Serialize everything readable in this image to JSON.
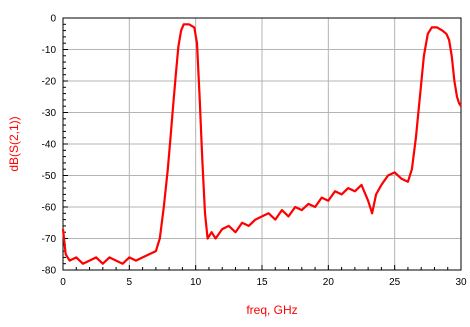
{
  "chart_data": {
    "type": "line",
    "xlabel": "freq, GHz",
    "ylabel": "dB(S(2,1))",
    "xlim": [
      0,
      30
    ],
    "ylim": [
      -80,
      0
    ],
    "x_ticks": [
      "0",
      "5",
      "10",
      "15",
      "20",
      "25",
      "30"
    ],
    "y_ticks": [
      "0",
      "-10",
      "-20",
      "-30",
      "-40",
      "-50",
      "-60",
      "-70",
      "-80"
    ],
    "grid": true,
    "colors": {
      "series": "#ff0000",
      "label": "#ff0000",
      "grid": "#b4b4b4",
      "axes": "#000000"
    },
    "series": [
      {
        "x": [
          0,
          0.2,
          0.5,
          1,
          1.5,
          2,
          2.5,
          3,
          3.5,
          4,
          4.5,
          5,
          5.5,
          6,
          6.5,
          7,
          7.3,
          7.6,
          7.9,
          8.1,
          8.3,
          8.5,
          8.7,
          8.9,
          9.1,
          9.5,
          9.9,
          10.1,
          10.3,
          10.5,
          10.7,
          10.9,
          11.2,
          11.5,
          12,
          12.5,
          13,
          13.5,
          14,
          14.5,
          15,
          15.5,
          16,
          16.5,
          17,
          17.5,
          18,
          18.5,
          19,
          19.5,
          20,
          20.5,
          21,
          21.5,
          22,
          22.5,
          23,
          23.3,
          23.6,
          24,
          24.5,
          25,
          25.5,
          26,
          26.3,
          26.6,
          26.9,
          27.2,
          27.5,
          27.8,
          28.2,
          28.6,
          28.9,
          29.1,
          29.3,
          29.5,
          29.7,
          29.85,
          30
        ],
        "y": [
          -67,
          -75,
          -77,
          -76,
          -78,
          -77,
          -76,
          -78,
          -76,
          -77,
          -78,
          -76,
          -77,
          -76,
          -75,
          -74,
          -70,
          -60,
          -48,
          -38,
          -28,
          -18,
          -9,
          -4,
          -2,
          -2,
          -3,
          -8,
          -25,
          -45,
          -62,
          -70,
          -68,
          -70,
          -67,
          -66,
          -68,
          -65,
          -66,
          -64,
          -63,
          -62,
          -64,
          -61,
          -63,
          -60,
          -61,
          -59,
          -60,
          -57,
          -58,
          -55,
          -56,
          -54,
          -55,
          -53,
          -58,
          -62,
          -56,
          -53,
          -50,
          -49,
          -51,
          -52,
          -48,
          -38,
          -25,
          -12,
          -5,
          -3,
          -3,
          -4,
          -5,
          -7,
          -12,
          -20,
          -25,
          -27,
          -28
        ]
      }
    ]
  }
}
